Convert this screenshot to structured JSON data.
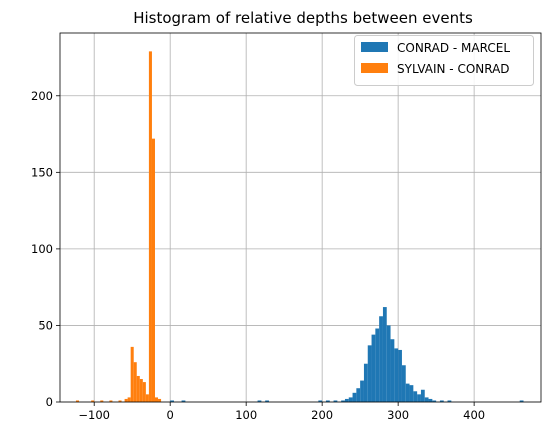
{
  "chart_data": {
    "type": "bar",
    "title": "Histogram of relative depths between events",
    "xlabel": "",
    "ylabel": "",
    "xlim": [
      -145,
      488
    ],
    "ylim": [
      0,
      241
    ],
    "xticks": [
      -100,
      0,
      100,
      200,
      300,
      400
    ],
    "yticks": [
      0,
      50,
      100,
      150,
      200
    ],
    "grid": true,
    "legend": "top-right",
    "series": [
      {
        "name": "CONRAD - MARCEL",
        "color": "#1f77b4",
        "bin_width": 5,
        "bins": [
          [
            0,
            1
          ],
          [
            15,
            1
          ],
          [
            115,
            1
          ],
          [
            125,
            1
          ],
          [
            195,
            1
          ],
          [
            205,
            1
          ],
          [
            215,
            1
          ],
          [
            225,
            1
          ],
          [
            230,
            2
          ],
          [
            235,
            3
          ],
          [
            240,
            6
          ],
          [
            245,
            9
          ],
          [
            250,
            14
          ],
          [
            255,
            25
          ],
          [
            260,
            37
          ],
          [
            265,
            44
          ],
          [
            270,
            48
          ],
          [
            275,
            56
          ],
          [
            280,
            62
          ],
          [
            285,
            50
          ],
          [
            290,
            41
          ],
          [
            295,
            35
          ],
          [
            300,
            34
          ],
          [
            305,
            24
          ],
          [
            310,
            12
          ],
          [
            315,
            11
          ],
          [
            320,
            7
          ],
          [
            325,
            5
          ],
          [
            330,
            8
          ],
          [
            335,
            3
          ],
          [
            340,
            2
          ],
          [
            345,
            1
          ],
          [
            355,
            1
          ],
          [
            365,
            1
          ],
          [
            460,
            1
          ]
        ]
      },
      {
        "name": "SYLVAIN - CONRAD",
        "color": "#ff7f0e",
        "bin_width": 4,
        "bins": [
          [
            -124,
            1
          ],
          [
            -104,
            1
          ],
          [
            -92,
            1
          ],
          [
            -80,
            1
          ],
          [
            -68,
            1
          ],
          [
            -60,
            2
          ],
          [
            -56,
            3
          ],
          [
            -52,
            36
          ],
          [
            -48,
            26
          ],
          [
            -44,
            17
          ],
          [
            -40,
            15
          ],
          [
            -36,
            13
          ],
          [
            -32,
            5
          ],
          [
            -28,
            229
          ],
          [
            -24,
            172
          ],
          [
            -20,
            3
          ],
          [
            -16,
            2
          ]
        ]
      }
    ]
  }
}
